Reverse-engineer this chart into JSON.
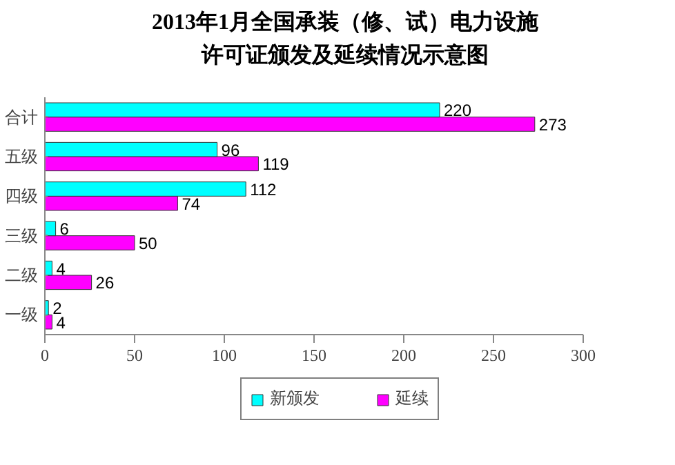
{
  "chart_data": {
    "type": "bar",
    "orientation": "horizontal",
    "title": "2013年1月全国承装（修、试）电力设施许可证颁发及延续情况示意图",
    "categories": [
      "合计",
      "五级",
      "四级",
      "三级",
      "二级",
      "一级"
    ],
    "series": [
      {
        "name": "新颁发",
        "color": "#00ffff",
        "values": [
          220,
          96,
          112,
          6,
          4,
          2
        ]
      },
      {
        "name": "延续",
        "color": "#ff00ff",
        "values": [
          273,
          119,
          74,
          50,
          26,
          4
        ]
      }
    ],
    "xlim": [
      0,
      300
    ],
    "xticks": [
      0,
      50,
      100,
      150,
      200,
      250,
      300
    ],
    "grid": false,
    "legend": "bottom",
    "data_labels": true
  }
}
